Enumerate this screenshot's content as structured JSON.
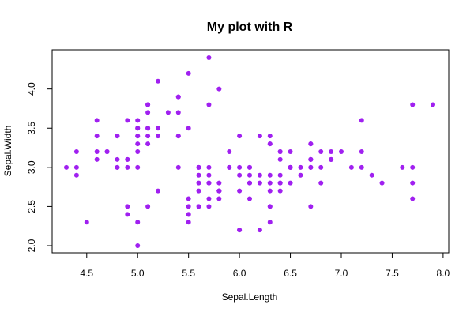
{
  "chart_data": {
    "type": "scatter",
    "title": "My plot with R",
    "xlabel": "Sepal.Length",
    "ylabel": "Sepal.Width",
    "xlim": [
      4.3,
      7.9
    ],
    "ylim": [
      2.0,
      4.4
    ],
    "x_ticks": [
      "4.5",
      "5.0",
      "5.5",
      "6.0",
      "6.5",
      "7.0",
      "7.5",
      "8.0"
    ],
    "y_ticks": [
      "2.0",
      "2.5",
      "3.0",
      "3.5",
      "4.0"
    ],
    "grid": false,
    "point_color": "#a020f0",
    "points": [
      [
        5.1,
        3.5
      ],
      [
        4.9,
        3.0
      ],
      [
        4.7,
        3.2
      ],
      [
        4.6,
        3.1
      ],
      [
        5.0,
        3.6
      ],
      [
        5.4,
        3.9
      ],
      [
        4.6,
        3.4
      ],
      [
        5.0,
        3.4
      ],
      [
        4.4,
        2.9
      ],
      [
        4.9,
        3.1
      ],
      [
        5.4,
        3.7
      ],
      [
        4.8,
        3.4
      ],
      [
        4.8,
        3.0
      ],
      [
        4.3,
        3.0
      ],
      [
        5.8,
        4.0
      ],
      [
        5.7,
        4.4
      ],
      [
        5.4,
        3.9
      ],
      [
        5.1,
        3.5
      ],
      [
        5.7,
        3.8
      ],
      [
        5.1,
        3.8
      ],
      [
        5.4,
        3.4
      ],
      [
        5.1,
        3.7
      ],
      [
        4.6,
        3.6
      ],
      [
        5.1,
        3.3
      ],
      [
        4.8,
        3.4
      ],
      [
        5.0,
        3.0
      ],
      [
        5.0,
        3.4
      ],
      [
        5.2,
        3.5
      ],
      [
        5.2,
        3.4
      ],
      [
        4.7,
        3.2
      ],
      [
        4.8,
        3.1
      ],
      [
        5.4,
        3.4
      ],
      [
        5.2,
        4.1
      ],
      [
        5.5,
        4.2
      ],
      [
        4.9,
        3.1
      ],
      [
        5.0,
        3.2
      ],
      [
        5.5,
        3.5
      ],
      [
        4.9,
        3.6
      ],
      [
        4.4,
        3.0
      ],
      [
        5.1,
        3.4
      ],
      [
        5.0,
        3.5
      ],
      [
        4.5,
        2.3
      ],
      [
        4.4,
        3.2
      ],
      [
        5.0,
        3.5
      ],
      [
        5.1,
        3.8
      ],
      [
        4.8,
        3.0
      ],
      [
        5.1,
        3.8
      ],
      [
        4.6,
        3.2
      ],
      [
        5.3,
        3.7
      ],
      [
        5.0,
        3.3
      ],
      [
        7.0,
        3.2
      ],
      [
        6.4,
        3.2
      ],
      [
        6.9,
        3.1
      ],
      [
        5.5,
        2.3
      ],
      [
        6.5,
        2.8
      ],
      [
        5.7,
        2.8
      ],
      [
        6.3,
        3.3
      ],
      [
        4.9,
        2.4
      ],
      [
        6.6,
        2.9
      ],
      [
        5.2,
        2.7
      ],
      [
        5.0,
        2.0
      ],
      [
        5.9,
        3.0
      ],
      [
        6.0,
        2.2
      ],
      [
        6.1,
        2.9
      ],
      [
        5.6,
        2.9
      ],
      [
        6.7,
        3.1
      ],
      [
        5.6,
        3.0
      ],
      [
        5.8,
        2.7
      ],
      [
        6.2,
        2.2
      ],
      [
        5.6,
        2.5
      ],
      [
        5.9,
        3.2
      ],
      [
        6.1,
        2.8
      ],
      [
        6.3,
        2.5
      ],
      [
        6.1,
        2.8
      ],
      [
        6.4,
        2.9
      ],
      [
        6.6,
        3.0
      ],
      [
        6.8,
        2.8
      ],
      [
        6.7,
        3.0
      ],
      [
        6.0,
        2.9
      ],
      [
        5.7,
        2.6
      ],
      [
        5.5,
        2.4
      ],
      [
        5.5,
        2.4
      ],
      [
        5.8,
        2.7
      ],
      [
        6.0,
        2.7
      ],
      [
        5.4,
        3.0
      ],
      [
        6.0,
        3.4
      ],
      [
        6.7,
        3.1
      ],
      [
        6.3,
        2.3
      ],
      [
        5.6,
        3.0
      ],
      [
        5.5,
        2.5
      ],
      [
        5.5,
        2.6
      ],
      [
        6.1,
        3.0
      ],
      [
        5.8,
        2.6
      ],
      [
        5.0,
        2.3
      ],
      [
        5.6,
        2.7
      ],
      [
        5.7,
        3.0
      ],
      [
        5.7,
        2.9
      ],
      [
        6.2,
        2.9
      ],
      [
        5.1,
        2.5
      ],
      [
        5.7,
        2.8
      ],
      [
        6.3,
        3.3
      ],
      [
        5.8,
        2.7
      ],
      [
        7.1,
        3.0
      ],
      [
        6.3,
        2.9
      ],
      [
        6.5,
        3.0
      ],
      [
        7.6,
        3.0
      ],
      [
        4.9,
        2.5
      ],
      [
        7.3,
        2.9
      ],
      [
        6.7,
        2.5
      ],
      [
        7.2,
        3.6
      ],
      [
        6.5,
        3.2
      ],
      [
        6.4,
        2.7
      ],
      [
        6.8,
        3.0
      ],
      [
        5.7,
        2.5
      ],
      [
        5.8,
        2.8
      ],
      [
        6.4,
        3.2
      ],
      [
        6.5,
        3.0
      ],
      [
        7.7,
        3.8
      ],
      [
        7.7,
        2.6
      ],
      [
        6.0,
        2.2
      ],
      [
        6.9,
        3.2
      ],
      [
        5.6,
        2.8
      ],
      [
        7.7,
        2.8
      ],
      [
        6.3,
        2.7
      ],
      [
        6.7,
        3.3
      ],
      [
        7.2,
        3.2
      ],
      [
        6.2,
        2.8
      ],
      [
        6.1,
        3.0
      ],
      [
        6.4,
        2.8
      ],
      [
        7.2,
        3.0
      ],
      [
        7.4,
        2.8
      ],
      [
        7.9,
        3.8
      ],
      [
        6.4,
        2.8
      ],
      [
        6.3,
        2.8
      ],
      [
        6.1,
        2.6
      ],
      [
        7.7,
        3.0
      ],
      [
        6.3,
        3.4
      ],
      [
        6.4,
        3.1
      ],
      [
        6.0,
        3.0
      ],
      [
        6.9,
        3.1
      ],
      [
        6.7,
        3.1
      ],
      [
        6.9,
        3.1
      ],
      [
        5.8,
        2.7
      ],
      [
        6.8,
        3.2
      ],
      [
        6.7,
        3.3
      ],
      [
        6.7,
        3.0
      ],
      [
        6.3,
        2.5
      ],
      [
        6.5,
        3.0
      ],
      [
        6.2,
        3.4
      ],
      [
        5.9,
        3.0
      ]
    ]
  }
}
